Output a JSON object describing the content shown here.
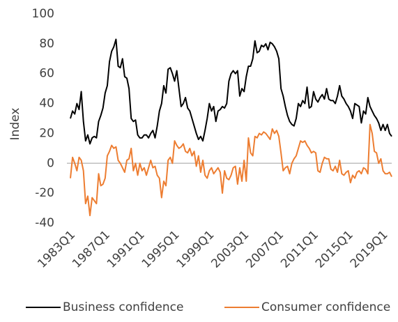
{
  "chart_data": {
    "type": "line",
    "y_label": "Index",
    "x": [
      1983,
      1983.25,
      1983.5,
      1983.75,
      1984,
      1984.25,
      1984.5,
      1984.75,
      1985,
      1985.25,
      1985.5,
      1985.75,
      1986,
      1986.25,
      1986.5,
      1986.75,
      1987,
      1987.25,
      1987.5,
      1987.75,
      1988,
      1988.25,
      1988.5,
      1988.75,
      1989,
      1989.25,
      1989.5,
      1989.75,
      1990,
      1990.25,
      1990.5,
      1990.75,
      1991,
      1991.25,
      1991.5,
      1991.75,
      1992,
      1992.25,
      1992.5,
      1992.75,
      1993,
      1993.25,
      1993.5,
      1993.75,
      1994,
      1994.25,
      1994.5,
      1994.75,
      1995,
      1995.25,
      1995.5,
      1995.75,
      1996,
      1996.25,
      1996.5,
      1996.75,
      1997,
      1997.25,
      1997.5,
      1997.75,
      1998,
      1998.25,
      1998.5,
      1998.75,
      1999,
      1999.25,
      1999.5,
      1999.75,
      2000,
      2000.25,
      2000.5,
      2000.75,
      2001,
      2001.25,
      2001.5,
      2001.75,
      2002,
      2002.25,
      2002.5,
      2002.75,
      2003,
      2003.25,
      2003.5,
      2003.75,
      2004,
      2004.25,
      2004.5,
      2004.75,
      2005,
      2005.25,
      2005.5,
      2005.75,
      2006,
      2006.25,
      2006.5,
      2006.75,
      2007,
      2007.25,
      2007.5,
      2007.75,
      2008,
      2008.25,
      2008.5,
      2008.75,
      2009,
      2009.25,
      2009.5,
      2009.75,
      2010,
      2010.25,
      2010.5,
      2010.75,
      2011,
      2011.25,
      2011.5,
      2011.75,
      2012,
      2012.25,
      2012.5,
      2012.75,
      2013,
      2013.25,
      2013.5,
      2013.75,
      2014,
      2014.25,
      2014.5,
      2014.75,
      2015,
      2015.25,
      2015.5,
      2015.75,
      2016,
      2016.25,
      2016.5,
      2016.75,
      2017,
      2017.25,
      2017.5,
      2017.75,
      2018,
      2018.25,
      2018.5,
      2018.75,
      2019,
      2019.25,
      2019.5,
      2019.75,
      2020
    ],
    "series": [
      {
        "name": "Business confidence",
        "color": "#000000",
        "values": [
          30,
          35,
          33,
          40,
          36,
          48,
          28,
          15,
          19,
          13,
          17,
          18,
          17,
          28,
          32,
          37,
          47,
          52,
          68,
          75,
          78,
          83,
          65,
          64,
          70,
          58,
          57,
          50,
          30,
          28,
          29,
          19,
          17,
          17,
          19,
          19,
          17,
          20,
          22,
          17,
          25,
          35,
          40,
          52,
          47,
          63,
          64,
          60,
          55,
          62,
          50,
          38,
          40,
          44,
          37,
          35,
          30,
          25,
          20,
          16,
          18,
          15,
          22,
          30,
          40,
          35,
          38,
          28,
          35,
          36,
          38,
          37,
          40,
          55,
          60,
          62,
          60,
          62,
          45,
          50,
          48,
          58,
          65,
          65,
          70,
          82,
          74,
          75,
          79,
          78,
          80,
          76,
          81,
          80,
          78,
          75,
          70,
          50,
          45,
          38,
          32,
          28,
          26,
          25,
          30,
          40,
          38,
          42,
          40,
          51,
          37,
          38,
          48,
          43,
          41,
          44,
          46,
          43,
          50,
          43,
          42,
          42,
          40,
          45,
          52,
          45,
          43,
          40,
          38,
          35,
          30,
          40,
          39,
          38,
          27,
          35,
          33,
          44,
          38,
          35,
          32,
          30,
          27,
          22,
          26,
          22,
          26,
          20,
          18
        ]
      },
      {
        "name": "Consumer confidence",
        "color": "#ed7d31",
        "values": [
          -10,
          4,
          0,
          -5,
          4,
          2,
          -5,
          -27,
          -22,
          -35,
          -23,
          -25,
          -27,
          -7,
          -15,
          -14,
          -10,
          5,
          8,
          12,
          10,
          11,
          2,
          0,
          -3,
          -6,
          2,
          3,
          10,
          -5,
          0,
          -8,
          0,
          -5,
          -3,
          -8,
          -3,
          2,
          -3,
          -2,
          -8,
          -10,
          -23,
          -12,
          -15,
          2,
          4,
          0,
          15,
          12,
          10,
          11,
          13,
          8,
          7,
          10,
          5,
          8,
          -2,
          5,
          -6,
          2,
          -8,
          -10,
          -5,
          -3,
          -7,
          -5,
          -3,
          -6,
          -20,
          -5,
          -10,
          -11,
          -8,
          -3,
          -2,
          -14,
          -3,
          -12,
          2,
          -12,
          17,
          7,
          5,
          18,
          17,
          20,
          19,
          21,
          20,
          18,
          16,
          23,
          20,
          22,
          18,
          7,
          -5,
          -3,
          -2,
          -7,
          0,
          3,
          5,
          10,
          15,
          14,
          15,
          12,
          10,
          7,
          8,
          7,
          -5,
          -6,
          0,
          4,
          3,
          3,
          -4,
          -5,
          -2,
          -6,
          2,
          -7,
          -8,
          -6,
          -5,
          -13,
          -8,
          -10,
          -6,
          -5,
          -7,
          -3,
          -4,
          -7,
          26,
          20,
          8,
          7,
          0,
          3,
          -5,
          -7,
          -7,
          -6,
          -9
        ]
      }
    ],
    "xlim": [
      1983,
      2020
    ],
    "xticks": [
      {
        "value": 1983,
        "label": "1983Q1"
      },
      {
        "value": 1987,
        "label": "1987Q1"
      },
      {
        "value": 1991,
        "label": "1991Q1"
      },
      {
        "value": 1995,
        "label": "1995Q1"
      },
      {
        "value": 1999,
        "label": "1999Q1"
      },
      {
        "value": 2003,
        "label": "2003Q1"
      },
      {
        "value": 2007,
        "label": "2007Q1"
      },
      {
        "value": 2011,
        "label": "2011Q1"
      },
      {
        "value": 2015,
        "label": "2015Q1"
      },
      {
        "value": 2019,
        "label": "2019Q1"
      }
    ],
    "ylim": [
      -40,
      100
    ],
    "yticks": [
      -40,
      -20,
      0,
      20,
      40,
      60,
      80,
      100
    ],
    "legend": "bottom"
  }
}
